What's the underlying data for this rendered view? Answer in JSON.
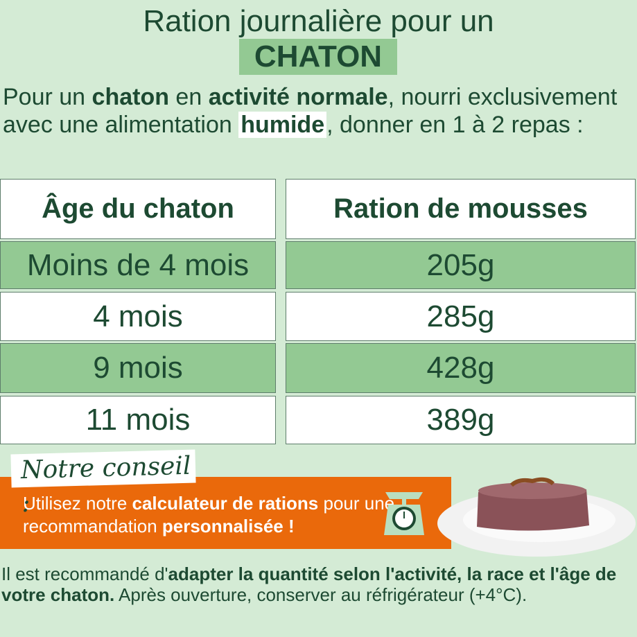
{
  "header": {
    "title_line1": "Ration journalière pour un",
    "title_line2": "CHATON"
  },
  "intro": {
    "p1": "Pour un ",
    "b1": "chaton",
    "p2": " en ",
    "b2": "activité normale",
    "p3": ", nourri exclusivement avec une alimentation ",
    "b3": "humide",
    "p4": ", donner en 1 à 2 repas :"
  },
  "table": {
    "headers": [
      "Âge du chaton",
      "Ration de mousses"
    ],
    "rows": [
      [
        "Moins de 4 mois",
        "205g"
      ],
      [
        "4 mois",
        "285g"
      ],
      [
        "9 mois",
        "428g"
      ],
      [
        "11 mois",
        "389g"
      ]
    ]
  },
  "advice": {
    "tag": "Notre conseil :",
    "t1": "Utilisez notre ",
    "b1": "calculateur de rations",
    "t2": " pour une recommandation ",
    "b2": "personnalisée !",
    "icon": "kitchen-scale-icon"
  },
  "footer": {
    "t1": "Il est recommandé d'",
    "b1": "adapter la quantité selon l'activité, la race et l'âge de votre chaton.",
    "t2": " Après ouverture, conserver au réfrigérateur (+4°C)."
  },
  "colors": {
    "background": "#d4ebd5",
    "highlight_green": "#93c993",
    "text_green": "#1d4a32",
    "orange": "#ea690b"
  }
}
